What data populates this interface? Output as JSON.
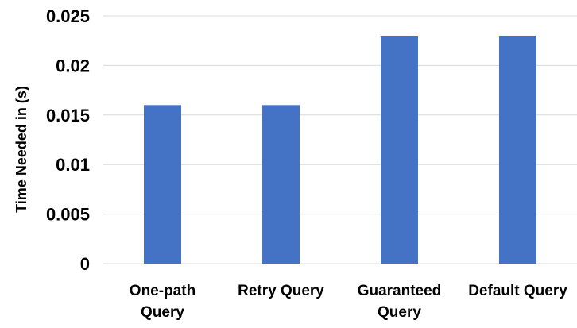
{
  "chart_data": {
    "type": "bar",
    "title": "",
    "xlabel": "",
    "ylabel": "Time Needed in (s)",
    "categories": [
      [
        "One-path",
        "Query"
      ],
      [
        "Retry Query"
      ],
      [
        "Guaranteed",
        "Query"
      ],
      [
        "Default Query"
      ]
    ],
    "values": [
      0.016,
      0.016,
      0.023,
      0.023
    ],
    "ylim": [
      0,
      0.025
    ],
    "yticks": [
      "0",
      "0.005",
      "0.01",
      "0.015",
      "0.02",
      "0.025"
    ],
    "grid": true,
    "legend": "none",
    "bar_color": "#4472C4",
    "grid_color": "#D9D9D9"
  }
}
